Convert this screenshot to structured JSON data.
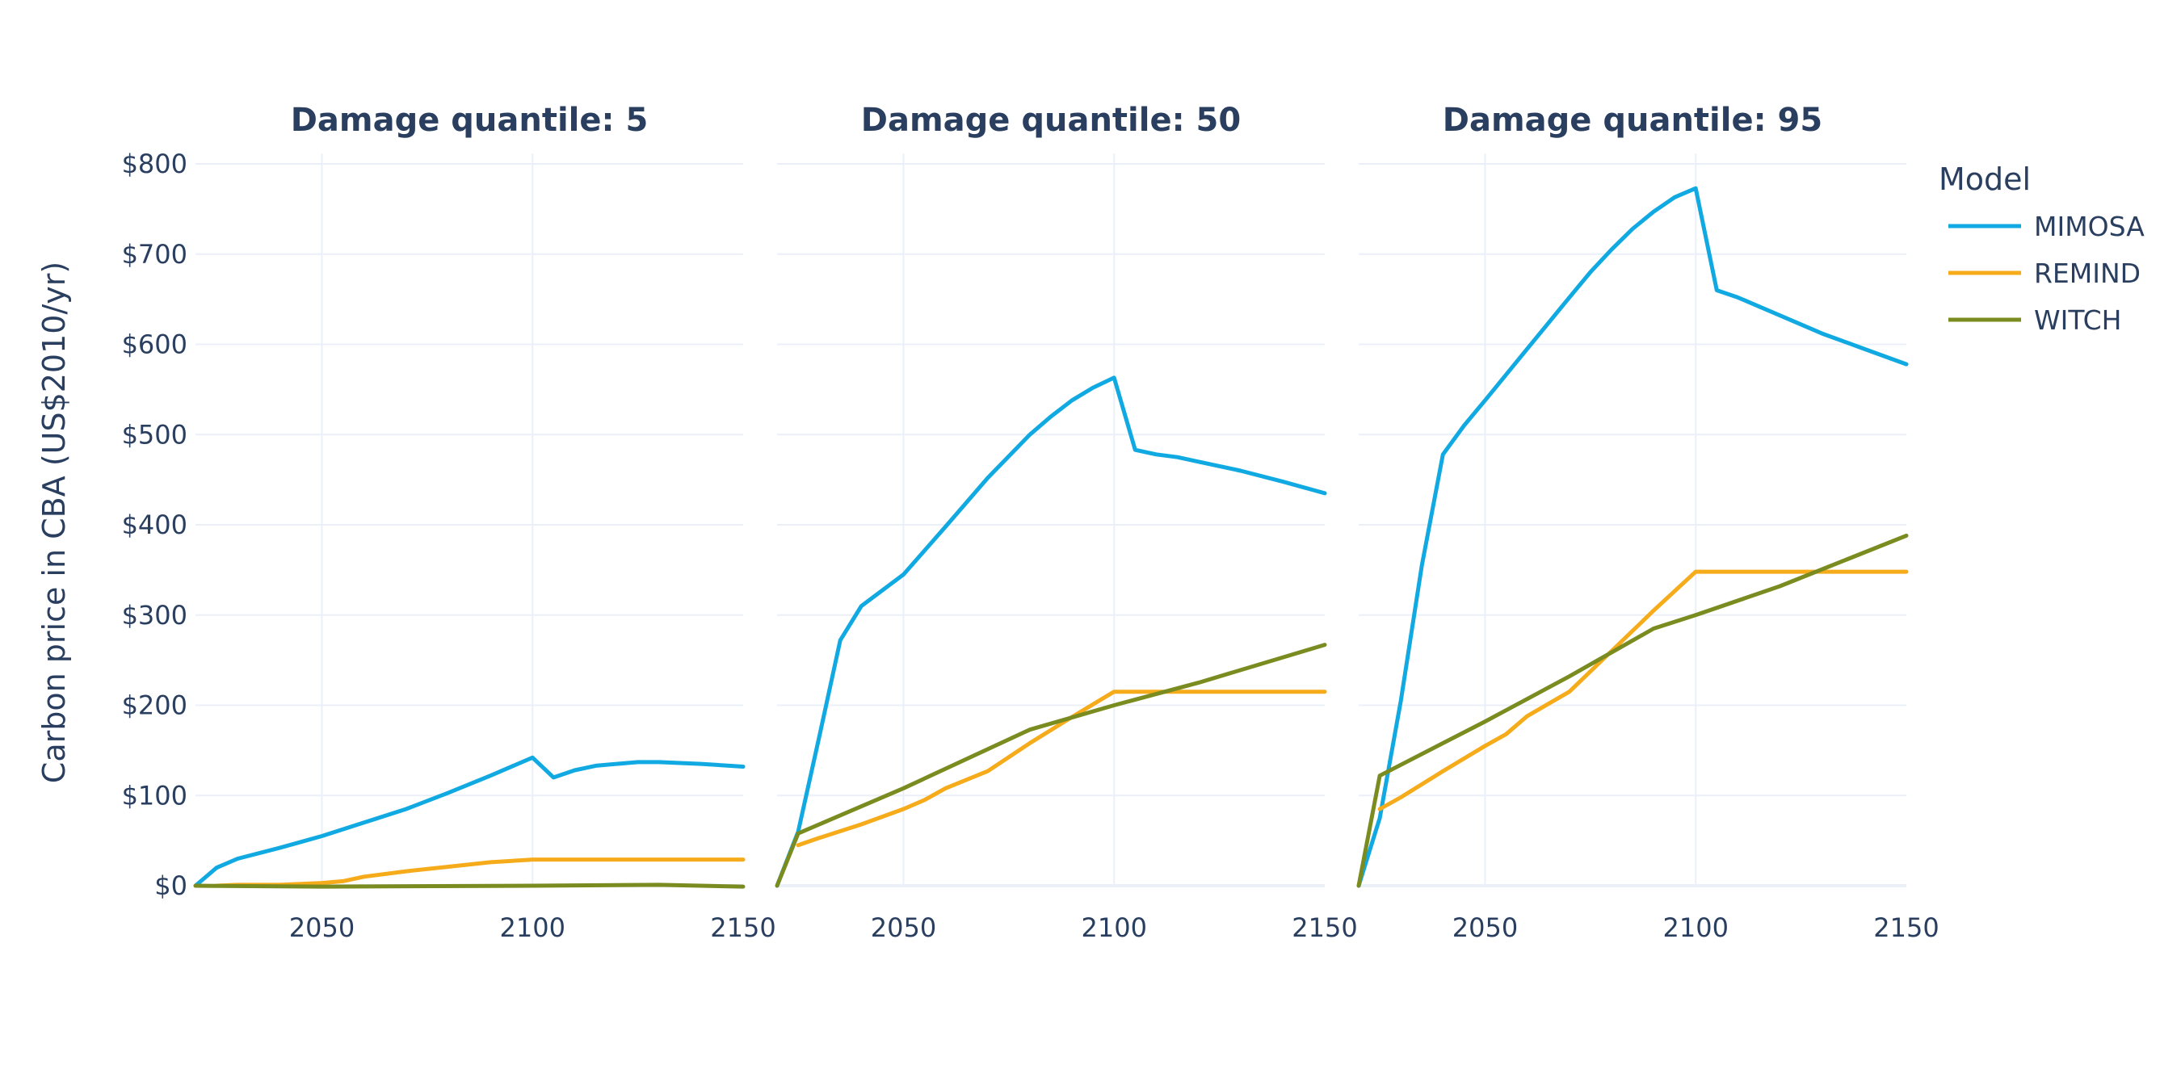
{
  "chart_data": {
    "type": "line",
    "ylabel": "Carbon price in CBA (US$2010/yr)",
    "xlim": [
      2020,
      2150
    ],
    "ylim": [
      0,
      820
    ],
    "x_ticks": [
      2050,
      2100,
      2150
    ],
    "y_ticks": [
      0,
      100,
      200,
      300,
      400,
      500,
      600,
      700,
      800
    ],
    "y_tick_labels": [
      "$0",
      "$100",
      "$200",
      "$300",
      "$400",
      "$500",
      "$600",
      "$700",
      "$800"
    ],
    "grid": true,
    "legend": {
      "title": "Model",
      "placement": "top-right",
      "entries": [
        {
          "name": "MIMOSA",
          "color": "#10a9e2"
        },
        {
          "name": "REMIND",
          "color": "#f5ab1a"
        },
        {
          "name": "WITCH",
          "color": "#7a8c1f"
        }
      ]
    },
    "panels": [
      {
        "title": "Damage quantile: 5",
        "series": [
          {
            "name": "MIMOSA",
            "x": [
              2020,
              2025,
              2030,
              2040,
              2050,
              2060,
              2070,
              2080,
              2090,
              2100,
              2105,
              2110,
              2115,
              2120,
              2125,
              2130,
              2140,
              2150
            ],
            "y": [
              0,
              20,
              30,
              42,
              55,
              70,
              85,
              103,
              122,
              142,
              120,
              128,
              133,
              135,
              137,
              137,
              135,
              132
            ]
          },
          {
            "name": "REMIND",
            "x": [
              2025,
              2030,
              2040,
              2050,
              2055,
              2060,
              2070,
              2080,
              2090,
              2100,
              2110,
              2120,
              2130,
              2140,
              2150
            ],
            "y": [
              0,
              1,
              1,
              3,
              5,
              10,
              16,
              21,
              26,
              29,
              29,
              29,
              29,
              29,
              29
            ]
          },
          {
            "name": "WITCH",
            "x": [
              2020,
              2050,
              2100,
              2130,
              2150
            ],
            "y": [
              0,
              -1,
              0,
              1,
              -1
            ]
          }
        ]
      },
      {
        "title": "Damage quantile: 50",
        "series": [
          {
            "name": "MIMOSA",
            "x": [
              2020,
              2025,
              2030,
              2035,
              2040,
              2050,
              2060,
              2070,
              2080,
              2085,
              2090,
              2095,
              2100,
              2105,
              2110,
              2115,
              2120,
              2130,
              2140,
              2150
            ],
            "y": [
              0,
              60,
              165,
              272,
              310,
              345,
              398,
              452,
              500,
              520,
              538,
              552,
              563,
              483,
              478,
              475,
              470,
              460,
              448,
              435
            ]
          },
          {
            "name": "REMIND",
            "x": [
              2025,
              2030,
              2040,
              2050,
              2055,
              2060,
              2070,
              2080,
              2090,
              2100,
              2110,
              2120,
              2130,
              2140,
              2150
            ],
            "y": [
              45,
              53,
              68,
              85,
              95,
              108,
              127,
              158,
              187,
              215,
              215,
              215,
              215,
              215,
              215
            ]
          },
          {
            "name": "WITCH",
            "x": [
              2020,
              2025,
              2050,
              2080,
              2100,
              2120,
              2150
            ],
            "y": [
              0,
              58,
              108,
              173,
              200,
              225,
              267
            ]
          }
        ]
      },
      {
        "title": "Damage quantile: 95",
        "series": [
          {
            "name": "MIMOSA",
            "x": [
              2020,
              2025,
              2030,
              2035,
              2040,
              2045,
              2050,
              2060,
              2070,
              2075,
              2080,
              2085,
              2090,
              2095,
              2100,
              2105,
              2110,
              2120,
              2130,
              2140,
              2150
            ],
            "y": [
              0,
              75,
              205,
              355,
              478,
              510,
              538,
              595,
              652,
              680,
              705,
              728,
              747,
              763,
              773,
              660,
              652,
              632,
              612,
              595,
              578
            ]
          },
          {
            "name": "REMIND",
            "x": [
              2025,
              2030,
              2040,
              2050,
              2055,
              2060,
              2070,
              2080,
              2090,
              2100,
              2110,
              2120,
              2130,
              2140,
              2150
            ],
            "y": [
              85,
              98,
              127,
              155,
              168,
              188,
              215,
              260,
              305,
              348,
              348,
              348,
              348,
              348,
              348
            ]
          },
          {
            "name": "WITCH",
            "x": [
              2020,
              2025,
              2050,
              2070,
              2090,
              2100,
              2120,
              2150
            ],
            "y": [
              0,
              122,
              182,
              232,
              285,
              300,
              332,
              388
            ]
          }
        ]
      }
    ]
  }
}
